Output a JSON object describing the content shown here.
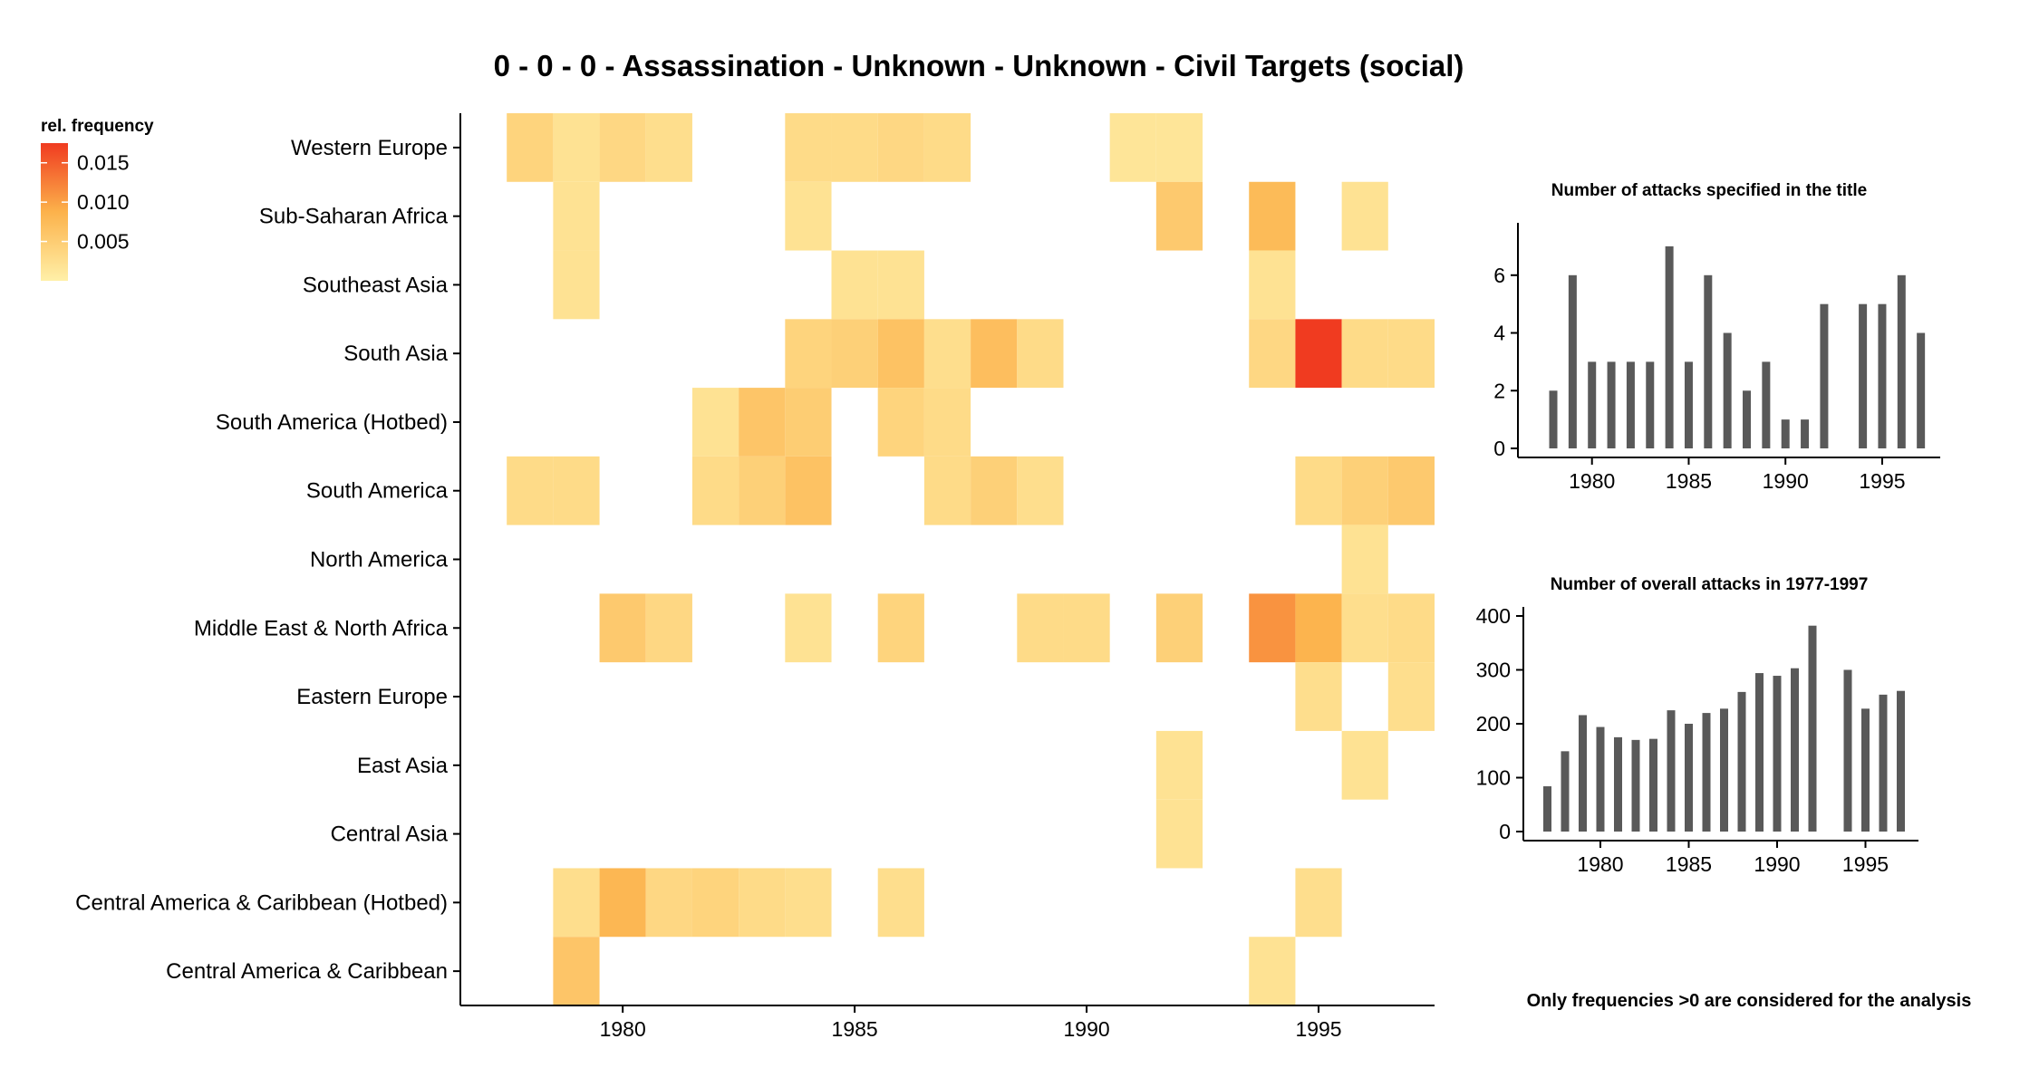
{
  "chart_data": [
    {
      "type": "heatmap",
      "title": "0 - 0 - 0 - Assassination - Unknown - Unknown - Civil Targets (social)",
      "legend_title": "rel. frequency",
      "legend_ticks": [
        "0.015",
        "0.010",
        "0.005"
      ],
      "legend_values": [
        0.015,
        0.01,
        0.005
      ],
      "color_range": [
        0.0,
        0.0175
      ],
      "colors": {
        "low": "#fff0a8",
        "mid": "#fcb24b",
        "high": "#f03b20"
      },
      "regions": [
        "Western Europe",
        "Sub-Saharan Africa",
        "Southeast Asia",
        "South Asia",
        "South America (Hotbed)",
        "South America",
        "North America",
        "Middle East & North Africa",
        "Eastern Europe",
        "East Asia",
        "Central Asia",
        "Central America & Caribbean (Hotbed)",
        "Central America & Caribbean"
      ],
      "x_ticks": [
        "1980",
        "1985",
        "1990",
        "1995"
      ],
      "x_tick_values": [
        1980,
        1985,
        1990,
        1995
      ],
      "xlim": [
        1976.5,
        1997.5
      ],
      "cells": [
        {
          "region": "Western Europe",
          "year": 1978,
          "value": 0.004
        },
        {
          "region": "Western Europe",
          "year": 1979,
          "value": 0.002
        },
        {
          "region": "Western Europe",
          "year": 1980,
          "value": 0.0035
        },
        {
          "region": "Western Europe",
          "year": 1981,
          "value": 0.0025
        },
        {
          "region": "Western Europe",
          "year": 1984,
          "value": 0.003
        },
        {
          "region": "Western Europe",
          "year": 1985,
          "value": 0.003
        },
        {
          "region": "Western Europe",
          "year": 1986,
          "value": 0.0035
        },
        {
          "region": "Western Europe",
          "year": 1987,
          "value": 0.003
        },
        {
          "region": "Western Europe",
          "year": 1991,
          "value": 0.0015
        },
        {
          "region": "Western Europe",
          "year": 1992,
          "value": 0.0015
        },
        {
          "region": "Sub-Saharan Africa",
          "year": 1979,
          "value": 0.002
        },
        {
          "region": "Sub-Saharan Africa",
          "year": 1984,
          "value": 0.002
        },
        {
          "region": "Sub-Saharan Africa",
          "year": 1992,
          "value": 0.0055
        },
        {
          "region": "Sub-Saharan Africa",
          "year": 1994,
          "value": 0.0075
        },
        {
          "region": "Sub-Saharan Africa",
          "year": 1996,
          "value": 0.002
        },
        {
          "region": "Southeast Asia",
          "year": 1979,
          "value": 0.002
        },
        {
          "region": "Southeast Asia",
          "year": 1985,
          "value": 0.002
        },
        {
          "region": "Southeast Asia",
          "year": 1986,
          "value": 0.002
        },
        {
          "region": "Southeast Asia",
          "year": 1994,
          "value": 0.002
        },
        {
          "region": "South Asia",
          "year": 1984,
          "value": 0.004
        },
        {
          "region": "South Asia",
          "year": 1985,
          "value": 0.0045
        },
        {
          "region": "South Asia",
          "year": 1986,
          "value": 0.0065
        },
        {
          "region": "South Asia",
          "year": 1987,
          "value": 0.0025
        },
        {
          "region": "South Asia",
          "year": 1988,
          "value": 0.007
        },
        {
          "region": "South Asia",
          "year": 1989,
          "value": 0.003
        },
        {
          "region": "South Asia",
          "year": 1994,
          "value": 0.0035
        },
        {
          "region": "South Asia",
          "year": 1995,
          "value": 0.0175
        },
        {
          "region": "South Asia",
          "year": 1996,
          "value": 0.003
        },
        {
          "region": "South Asia",
          "year": 1997,
          "value": 0.003
        },
        {
          "region": "South America (Hotbed)",
          "year": 1982,
          "value": 0.002
        },
        {
          "region": "South America (Hotbed)",
          "year": 1983,
          "value": 0.006
        },
        {
          "region": "South America (Hotbed)",
          "year": 1984,
          "value": 0.005
        },
        {
          "region": "South America (Hotbed)",
          "year": 1986,
          "value": 0.004
        },
        {
          "region": "South America (Hotbed)",
          "year": 1987,
          "value": 0.003
        },
        {
          "region": "South America",
          "year": 1978,
          "value": 0.003
        },
        {
          "region": "South America",
          "year": 1979,
          "value": 0.003
        },
        {
          "region": "South America",
          "year": 1982,
          "value": 0.003
        },
        {
          "region": "South America",
          "year": 1983,
          "value": 0.0045
        },
        {
          "region": "South America",
          "year": 1984,
          "value": 0.0065
        },
        {
          "region": "South America",
          "year": 1987,
          "value": 0.003
        },
        {
          "region": "South America",
          "year": 1988,
          "value": 0.0045
        },
        {
          "region": "South America",
          "year": 1989,
          "value": 0.0025
        },
        {
          "region": "South America",
          "year": 1995,
          "value": 0.003
        },
        {
          "region": "South America",
          "year": 1996,
          "value": 0.0045
        },
        {
          "region": "South America",
          "year": 1997,
          "value": 0.0055
        },
        {
          "region": "North America",
          "year": 1996,
          "value": 0.002
        },
        {
          "region": "Middle East & North Africa",
          "year": 1980,
          "value": 0.0055
        },
        {
          "region": "Middle East & North Africa",
          "year": 1981,
          "value": 0.0035
        },
        {
          "region": "Middle East & North Africa",
          "year": 1984,
          "value": 0.002
        },
        {
          "region": "Middle East & North Africa",
          "year": 1986,
          "value": 0.004
        },
        {
          "region": "Middle East & North Africa",
          "year": 1989,
          "value": 0.003
        },
        {
          "region": "Middle East & North Africa",
          "year": 1990,
          "value": 0.003
        },
        {
          "region": "Middle East & North Africa",
          "year": 1992,
          "value": 0.0045
        },
        {
          "region": "Middle East & North Africa",
          "year": 1994,
          "value": 0.011
        },
        {
          "region": "Middle East & North Africa",
          "year": 1995,
          "value": 0.0085
        },
        {
          "region": "Middle East & North Africa",
          "year": 1996,
          "value": 0.0025
        },
        {
          "region": "Middle East & North Africa",
          "year": 1997,
          "value": 0.003
        },
        {
          "region": "Eastern Europe",
          "year": 1995,
          "value": 0.0025
        },
        {
          "region": "Eastern Europe",
          "year": 1997,
          "value": 0.0025
        },
        {
          "region": "East Asia",
          "year": 1992,
          "value": 0.002
        },
        {
          "region": "East Asia",
          "year": 1996,
          "value": 0.002
        },
        {
          "region": "Central Asia",
          "year": 1992,
          "value": 0.002
        },
        {
          "region": "Central America & Caribbean (Hotbed)",
          "year": 1979,
          "value": 0.0025
        },
        {
          "region": "Central America & Caribbean (Hotbed)",
          "year": 1980,
          "value": 0.008
        },
        {
          "region": "Central America & Caribbean (Hotbed)",
          "year": 1981,
          "value": 0.0035
        },
        {
          "region": "Central America & Caribbean (Hotbed)",
          "year": 1982,
          "value": 0.004
        },
        {
          "region": "Central America & Caribbean (Hotbed)",
          "year": 1983,
          "value": 0.003
        },
        {
          "region": "Central America & Caribbean (Hotbed)",
          "year": 1984,
          "value": 0.0025
        },
        {
          "region": "Central America & Caribbean (Hotbed)",
          "year": 1986,
          "value": 0.0025
        },
        {
          "region": "Central America & Caribbean (Hotbed)",
          "year": 1995,
          "value": 0.0025
        },
        {
          "region": "Central America & Caribbean",
          "year": 1979,
          "value": 0.006
        },
        {
          "region": "Central America & Caribbean",
          "year": 1994,
          "value": 0.002
        }
      ]
    },
    {
      "type": "bar",
      "title": "Number of attacks specified in the title",
      "x": [
        1978,
        1979,
        1980,
        1981,
        1982,
        1983,
        1984,
        1985,
        1986,
        1987,
        1988,
        1989,
        1990,
        1991,
        1992,
        1994,
        1995,
        1996,
        1997
      ],
      "values": [
        2,
        6,
        3,
        3,
        3,
        3,
        7,
        3,
        6,
        4,
        2,
        3,
        1,
        1,
        5,
        5,
        5,
        6,
        4
      ],
      "xlim": [
        1976.5,
        1998.0
      ],
      "ylim": [
        0,
        7.5
      ],
      "y_ticks": [
        "0",
        "2",
        "4",
        "6"
      ],
      "y_tick_values": [
        0,
        2,
        4,
        6
      ],
      "x_ticks": [
        "1980",
        "1985",
        "1990",
        "1995"
      ],
      "x_tick_values": [
        1980,
        1985,
        1990,
        1995
      ],
      "bar_color": "#595959"
    },
    {
      "type": "bar",
      "title": "Number of overall attacks in 1977-1997",
      "x": [
        1977,
        1978,
        1979,
        1980,
        1981,
        1982,
        1983,
        1984,
        1985,
        1986,
        1987,
        1988,
        1989,
        1990,
        1991,
        1992,
        1994,
        1995,
        1996,
        1997
      ],
      "values": [
        84,
        149,
        216,
        194,
        175,
        170,
        172,
        225,
        200,
        220,
        228,
        259,
        294,
        289,
        303,
        382,
        300,
        228,
        254,
        261
      ],
      "xlim": [
        1976.0,
        1998.0
      ],
      "ylim": [
        0,
        400
      ],
      "y_ticks": [
        "0",
        "100",
        "200",
        "300",
        "400"
      ],
      "y_tick_values": [
        0,
        100,
        200,
        300,
        400
      ],
      "x_ticks": [
        "1980",
        "1985",
        "1990",
        "1995"
      ],
      "x_tick_values": [
        1980,
        1985,
        1990,
        1995
      ],
      "bar_color": "#595959"
    }
  ],
  "footer_note": "Only frequencies >0 are considered for the analysis"
}
